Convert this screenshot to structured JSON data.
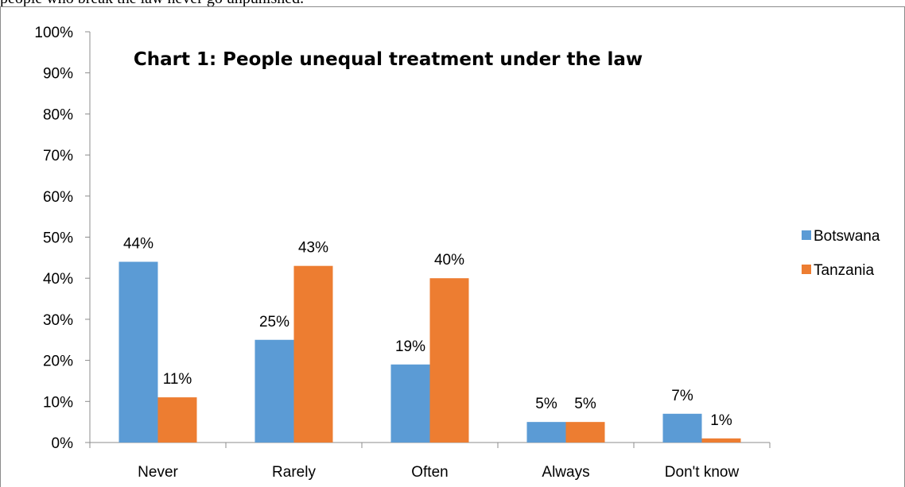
{
  "context_text": "people who break the law never go unpunished.",
  "chart_data": {
    "type": "bar",
    "title": "Chart 1: People unequal treatment under the law",
    "xlabel": "",
    "ylabel": "",
    "categories": [
      "Never",
      "Rarely",
      "Often",
      "Always",
      "Don't know"
    ],
    "series": [
      {
        "name": "Botswana",
        "color": "#5b9bd5",
        "values": [
          44,
          25,
          19,
          5,
          7
        ],
        "labels": [
          "44%",
          "25%",
          "19%",
          "5%",
          "7%"
        ]
      },
      {
        "name": "Tanzania",
        "color": "#ed7d31",
        "values": [
          11,
          43,
          40,
          5,
          1
        ],
        "labels": [
          "11%",
          "43%",
          "40%",
          "5%",
          "1%"
        ]
      }
    ],
    "ylim": [
      0,
      100
    ],
    "yticks": [
      "0%",
      "10%",
      "20%",
      "30%",
      "40%",
      "50%",
      "60%",
      "70%",
      "80%",
      "90%",
      "100%"
    ],
    "grid": false,
    "legend_position": "right"
  }
}
